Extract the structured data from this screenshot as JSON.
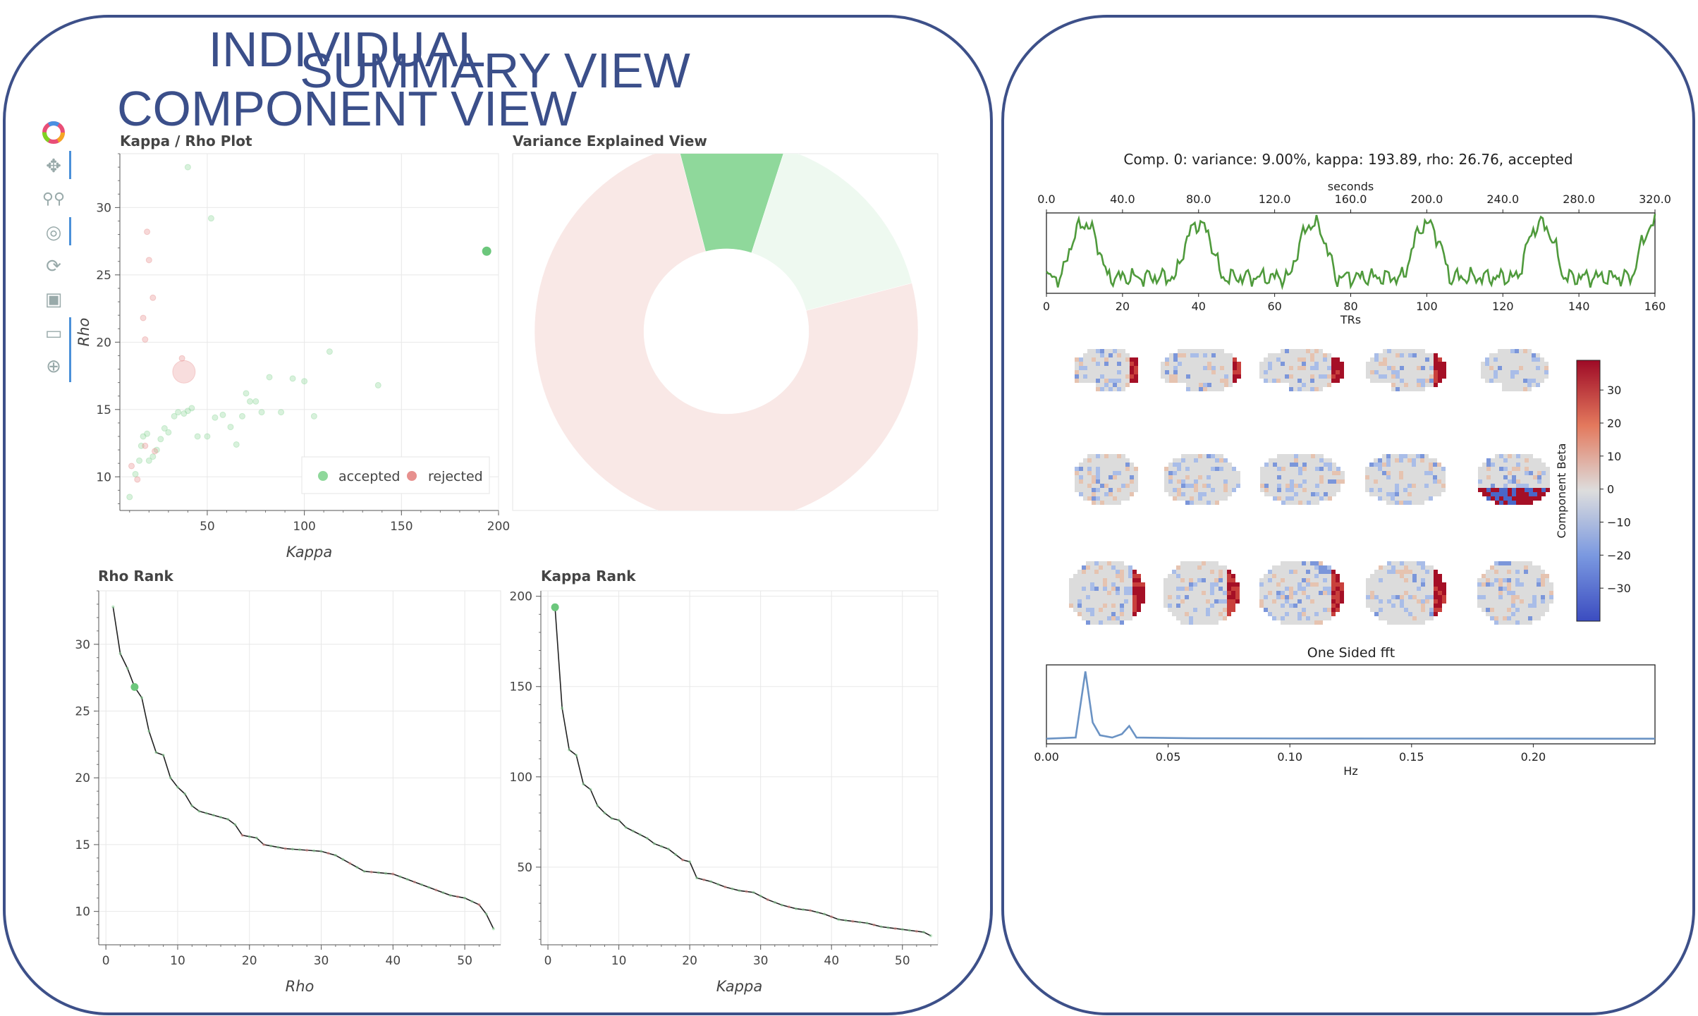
{
  "summary": {
    "title": "SUMMARY VIEW"
  },
  "individual": {
    "title_line1": "INDIVIDUAL",
    "title_line2": "COMPONENT VIEW",
    "caption": "Comp. 0: variance: 9.00%, kappa: 193.89, rho: 26.76, accepted"
  },
  "toolbar": {
    "icons": [
      "bokeh-logo-icon",
      "pan-icon",
      "box-zoom-icon",
      "wheel-zoom-icon",
      "reset-icon",
      "save-icon",
      "hover-icon",
      "crosshair-icon"
    ]
  },
  "colors": {
    "accepted": "#8fd89b",
    "rejected": "#e7908e",
    "accepted_light": "#eef9f0",
    "rejected_light": "#f9e8e6",
    "timeseries": "#4f9a3c",
    "fft": "#6b93c4",
    "frame": "#3d5089"
  },
  "chart_data": [
    {
      "id": "kappa-rho",
      "type": "scatter",
      "title": "Kappa / Rho Plot",
      "xlabel": "Kappa",
      "ylabel": "Rho",
      "xlim": [
        5,
        200
      ],
      "ylim": [
        7.5,
        34
      ],
      "xticks": [
        50,
        100,
        150,
        200
      ],
      "yticks": [
        10,
        15,
        20,
        25,
        30
      ],
      "legend": {
        "position": "bottom-right",
        "entries": [
          "accepted",
          "rejected"
        ]
      },
      "highlight": {
        "x": 193.89,
        "y": 26.76,
        "class": "accepted"
      },
      "accepted_points": [
        [
          40,
          33
        ],
        [
          52,
          29.2
        ],
        [
          10,
          8.5
        ],
        [
          13,
          10.2
        ],
        [
          15,
          11.2
        ],
        [
          16,
          12.3
        ],
        [
          17,
          13
        ],
        [
          19,
          13.2
        ],
        [
          20,
          11.2
        ],
        [
          22,
          11.5
        ],
        [
          24,
          12
        ],
        [
          26,
          12.8
        ],
        [
          28,
          13.6
        ],
        [
          30,
          13.3
        ],
        [
          33,
          14.5
        ],
        [
          35,
          14.8
        ],
        [
          38,
          14.7
        ],
        [
          40,
          14.9
        ],
        [
          42,
          15.1
        ],
        [
          45,
          13
        ],
        [
          50,
          13
        ],
        [
          54,
          14.4
        ],
        [
          58,
          14.6
        ],
        [
          62,
          13.7
        ],
        [
          65,
          12.4
        ],
        [
          68,
          14.5
        ],
        [
          70,
          16.2
        ],
        [
          72,
          15.6
        ],
        [
          75,
          15.6
        ],
        [
          78,
          14.8
        ],
        [
          82,
          17.4
        ],
        [
          88,
          14.8
        ],
        [
          94,
          17.3
        ],
        [
          100,
          17.1
        ],
        [
          105,
          14.5
        ],
        [
          113,
          19.3
        ],
        [
          138,
          16.8
        ]
      ],
      "rejected_points": [
        [
          11,
          10.8
        ],
        [
          14,
          9.8
        ],
        [
          17,
          21.8
        ],
        [
          19,
          28.2
        ],
        [
          20,
          26.1
        ],
        [
          22,
          23.3
        ],
        [
          18,
          20.2
        ],
        [
          37,
          18.8
        ],
        [
          18,
          12.3
        ],
        [
          23,
          11.9
        ]
      ],
      "rejected_big": {
        "x": 38,
        "y": 17.8
      }
    },
    {
      "id": "variance",
      "type": "pie",
      "title": "Variance Explained View",
      "slices": [
        {
          "label": "highlighted accepted",
          "value": 9.0,
          "class": "accepted"
        },
        {
          "label": "accepted",
          "value": 16.0,
          "class": "accepted_light"
        },
        {
          "label": "rejected",
          "value": 75.0,
          "class": "rejected_light"
        }
      ]
    },
    {
      "id": "rho-rank",
      "type": "line",
      "title": "Rho Rank",
      "xlabel": "Rho",
      "xlim": [
        -1,
        55
      ],
      "ylim": [
        7.5,
        34
      ],
      "xticks": [
        0,
        10,
        20,
        30,
        40,
        50
      ],
      "yticks": [
        10,
        15,
        20,
        25,
        30
      ],
      "highlight": {
        "x": 4,
        "y": 26.8
      },
      "keypoints": [
        [
          1,
          32.8
        ],
        [
          2,
          29.3
        ],
        [
          3,
          28.2
        ],
        [
          4,
          26.8
        ],
        [
          5,
          26.0
        ],
        [
          6,
          23.5
        ],
        [
          7,
          21.9
        ],
        [
          8,
          21.7
        ],
        [
          9,
          20
        ],
        [
          10,
          19.3
        ],
        [
          11,
          18.8
        ],
        [
          12,
          17.9
        ],
        [
          13,
          17.5
        ],
        [
          15,
          17.2
        ],
        [
          17,
          16.9
        ],
        [
          18,
          16.5
        ],
        [
          19,
          15.7
        ],
        [
          21,
          15.5
        ],
        [
          22,
          15.0
        ],
        [
          25,
          14.7
        ],
        [
          30,
          14.5
        ],
        [
          32,
          14.2
        ],
        [
          34,
          13.6
        ],
        [
          36,
          13.0
        ],
        [
          40,
          12.8
        ],
        [
          42,
          12.4
        ],
        [
          44,
          12.0
        ],
        [
          46,
          11.6
        ],
        [
          48,
          11.2
        ],
        [
          50,
          11.0
        ],
        [
          52,
          10.5
        ],
        [
          53,
          9.8
        ],
        [
          54,
          8.7
        ]
      ]
    },
    {
      "id": "kappa-rank",
      "type": "line",
      "title": "Kappa Rank",
      "xlabel": "Kappa",
      "xlim": [
        -1,
        55
      ],
      "ylim": [
        7,
        203
      ],
      "xticks": [
        0,
        10,
        20,
        30,
        40,
        50
      ],
      "yticks": [
        50,
        100,
        150,
        200
      ],
      "highlight": {
        "x": 1,
        "y": 193.9
      },
      "keypoints": [
        [
          1,
          193.9
        ],
        [
          2,
          138
        ],
        [
          3,
          115
        ],
        [
          4,
          112
        ],
        [
          5,
          96
        ],
        [
          6,
          93
        ],
        [
          7,
          84
        ],
        [
          8,
          80
        ],
        [
          9,
          77
        ],
        [
          10,
          76
        ],
        [
          11,
          72
        ],
        [
          12,
          70
        ],
        [
          14,
          66
        ],
        [
          15,
          63
        ],
        [
          17,
          60
        ],
        [
          19,
          54
        ],
        [
          20,
          53
        ],
        [
          21,
          44
        ],
        [
          23,
          42
        ],
        [
          25,
          39
        ],
        [
          27,
          37
        ],
        [
          29,
          36
        ],
        [
          31,
          32
        ],
        [
          33,
          29
        ],
        [
          35,
          27
        ],
        [
          37,
          26
        ],
        [
          39,
          24
        ],
        [
          41,
          21
        ],
        [
          43,
          20
        ],
        [
          45,
          19
        ],
        [
          47,
          17
        ],
        [
          49,
          16
        ],
        [
          51,
          15
        ],
        [
          53,
          14
        ],
        [
          54,
          12
        ]
      ]
    },
    {
      "id": "timeseries",
      "type": "line",
      "xlabel": "TRs",
      "x2label": "seconds",
      "xlim": [
        0,
        160
      ],
      "xticks": [
        0,
        20,
        40,
        60,
        80,
        100,
        120,
        140,
        160
      ],
      "x2ticks": [
        "0.0",
        "40.0",
        "80.0",
        "120.0",
        "160.0",
        "200.0",
        "240.0",
        "280.0",
        "320.0"
      ]
    },
    {
      "id": "brain-maps",
      "type": "heatmap",
      "colorbar_label": "Component Beta",
      "colorbar_ticks": [
        30,
        20,
        10,
        0,
        -10,
        -20,
        -30
      ]
    },
    {
      "id": "fft",
      "type": "line",
      "title": "One Sided fft",
      "xlabel": "Hz",
      "xlim": [
        0,
        0.25
      ],
      "xticks": [
        "0.00",
        "0.05",
        "0.10",
        "0.15",
        "0.20"
      ]
    }
  ]
}
